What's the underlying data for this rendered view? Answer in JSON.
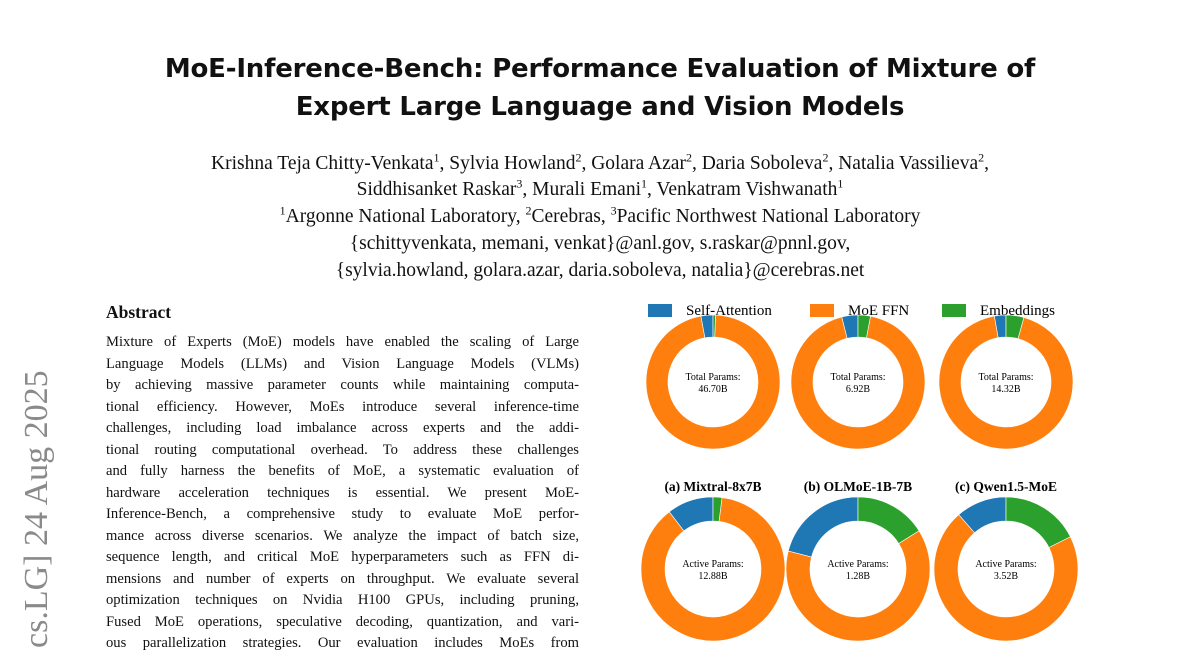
{
  "header": {
    "title": [
      "MoE-Inference-Bench: Performance Evaluation of Mixture of",
      "Expert Large Language and Vision Models"
    ],
    "author_lines": [
      [
        {
          "name": "Krishna Teja Chitty-Venkata",
          "affil": "1"
        },
        {
          "name": "Sylvia Howland",
          "affil": "2"
        },
        {
          "name": "Golara Azar",
          "affil": "2"
        },
        {
          "name": "Daria Soboleva",
          "affil": "2"
        },
        {
          "name": "Natalia Vassilieva",
          "affil": "2"
        }
      ],
      [
        {
          "name": "Siddhisanket Raskar",
          "affil": "3"
        },
        {
          "name": "Murali Emani",
          "affil": "1"
        },
        {
          "name": "Venkatram Vishwanath",
          "affil": "1"
        }
      ]
    ],
    "affiliations": [
      {
        "mark": "1",
        "name": "Argonne National Laboratory"
      },
      {
        "mark": "2",
        "name": "Cerebras"
      },
      {
        "mark": "3",
        "name": "Pacific Northwest National Laboratory"
      }
    ],
    "emails": [
      "{schittyvenkata, memani, venkat}@anl.gov, s.raskar@pnnl.gov,",
      "{sylvia.howland, golara.azar, daria.soboleva, natalia}@cerebras.net"
    ]
  },
  "sidebar": "cs.LG]  24 Aug 2025",
  "abstract": {
    "heading": "Abstract",
    "lines": [
      "Mixture of Experts (MoE) models have enabled the scaling of Large",
      "Language Models (LLMs) and Vision Language Models (VLMs)",
      "by achieving massive parameter counts while maintaining computa-",
      "tional efficiency. However, MoEs introduce several inference-time",
      "challenges, including load imbalance across experts and the addi-",
      "tional routing computational overhead. To address these challenges",
      "and fully harness the benefits of MoE, a systematic evaluation of",
      "hardware acceleration techniques is essential. We present MoE-",
      "Inference-Bench, a comprehensive study to evaluate MoE perfor-",
      "mance across diverse scenarios. We analyze the impact of batch size,",
      "sequence length, and critical MoE hyperparameters such as FFN di-",
      "mensions and number of experts on throughput. We evaluate several",
      "optimization techniques on Nvidia H100 GPUs, including pruning,",
      "Fused MoE operations, speculative decoding, quantization, and vari-",
      "ous parallelization strategies. Our evaluation includes MoEs from"
    ]
  },
  "chart_data": {
    "type": "donut",
    "categories": [
      "Self-Attention",
      "MoE FFN",
      "Embeddings"
    ],
    "colors": [
      "#1f77b4",
      "#ff7f0e",
      "#2ca02c"
    ],
    "panels": [
      {
        "caption": "(a) Mixtral-8x7B",
        "total": {
          "label": "Total Params:",
          "center_value": "46.70B",
          "values": [
            2.9,
            96.5,
            0.6
          ]
        },
        "active": {
          "label": "Active Params:",
          "center_value": "12.88B",
          "values": [
            10.4,
            87.6,
            2.0
          ]
        }
      },
      {
        "caption": "(b) OLMoE-1B-7B",
        "total": {
          "label": "Total Params:",
          "center_value": "6.92B",
          "values": [
            3.9,
            93.1,
            3.0
          ]
        },
        "active": {
          "label": "Active Params:",
          "center_value": "1.28B",
          "values": [
            21.0,
            62.9,
            16.1
          ]
        }
      },
      {
        "caption": "(c) Qwen1.5-MoE",
        "total": {
          "label": "Total Params:",
          "center_value": "14.32B",
          "values": [
            2.8,
            92.9,
            4.3
          ]
        },
        "active": {
          "label": "Active Params:",
          "center_value": "3.52B",
          "values": [
            11.4,
            71.0,
            17.6
          ]
        }
      }
    ]
  }
}
